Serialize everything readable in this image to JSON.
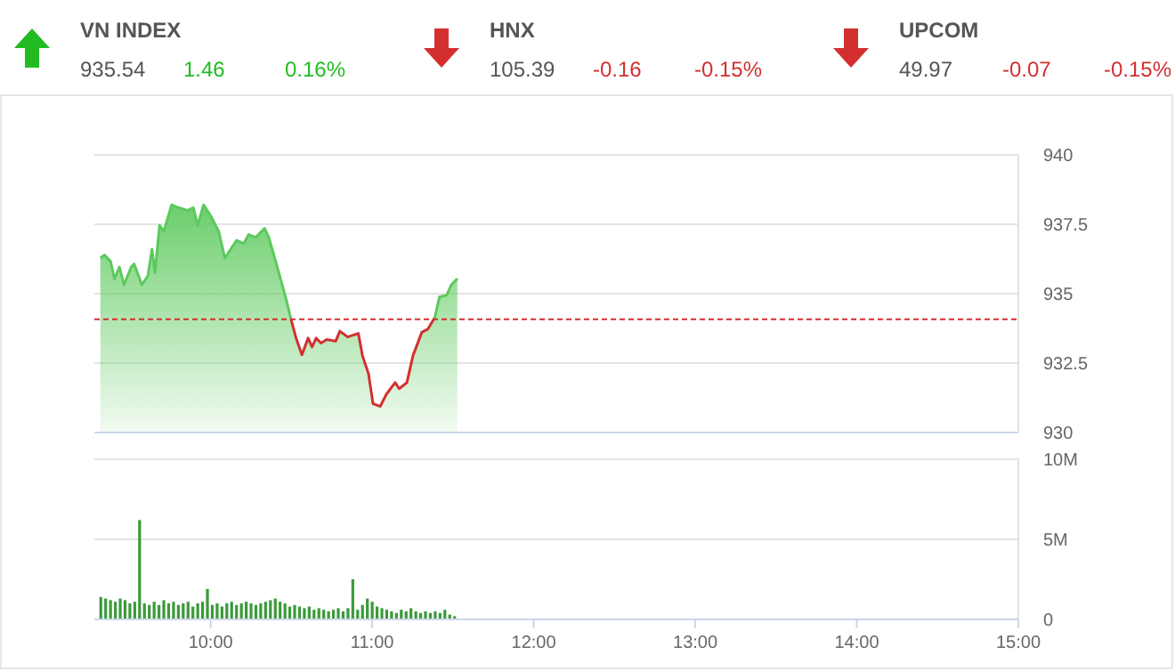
{
  "chart_data": [
    {
      "type": "other",
      "categories": [
        "VN INDEX",
        "HNX",
        "UPCOM"
      ],
      "values": [
        1.46,
        -0.16,
        -0.07
      ],
      "value_labels": [
        "1.46",
        "-0.16",
        "-0.07"
      ],
      "colors": [
        "#22bb22",
        "#d32f2f",
        "#d32f2f"
      ],
      "annotations": [
        "935.54",
        "0.16%",
        "105.39",
        "-0.15%",
        "49.97",
        "-0.15%"
      ]
    },
    {
      "type": "area",
      "xlim": [
        9.28,
        15
      ],
      "ylim": [
        930,
        940
      ],
      "yticks": [
        930,
        932.5,
        935,
        937.5,
        940
      ],
      "tick_labels": "y",
      "grid": "y",
      "ref_lines": [
        {
          "axis": "y",
          "value": 934.08,
          "color": "#d32f2f",
          "line_style": "dashed"
        }
      ],
      "series": [
        {
          "color": "#5cc95c",
          "x": [
            9.317,
            9.343,
            9.38,
            9.405,
            9.435,
            9.464,
            9.508,
            9.526,
            9.574,
            9.611,
            9.637,
            9.655,
            9.684,
            9.71,
            9.758,
            9.8,
            9.857,
            9.893,
            9.92,
            9.956,
            10.003,
            10.05,
            10.088,
            10.124,
            10.16,
            10.206,
            10.235,
            10.279,
            10.334,
            10.36,
            10.407,
            10.463,
            10.499,
            10.529,
            10.565,
            10.603,
            10.628,
            10.653,
            10.683,
            10.719,
            10.774,
            10.8,
            10.848,
            10.914,
            10.94,
            10.977,
            11.005,
            11.05,
            11.087,
            11.142,
            11.167,
            11.215,
            11.252,
            11.307,
            11.344,
            11.388,
            11.417,
            11.461,
            11.49,
            11.527
          ],
          "values": [
            936.28,
            936.39,
            936.17,
            935.53,
            935.96,
            935.32,
            935.96,
            936.07,
            935.32,
            935.64,
            936.6,
            935.75,
            937.46,
            937.24,
            938.2,
            938.1,
            938.0,
            938.1,
            937.46,
            938.2,
            937.78,
            937.24,
            936.28,
            936.6,
            936.92,
            936.81,
            937.13,
            937.03,
            937.35,
            937.03,
            936.07,
            934.89,
            934.04,
            933.4,
            932.8,
            933.4,
            933.08,
            933.4,
            933.22,
            933.35,
            933.29,
            933.65,
            933.44,
            933.57,
            932.76,
            932.12,
            931.04,
            930.94,
            931.37,
            931.8,
            931.58,
            931.8,
            932.76,
            933.61,
            933.72,
            934.15,
            934.89,
            934.94,
            935.32,
            935.54
          ]
        }
      ]
    },
    {
      "type": "bar",
      "xlim": [
        9.28,
        15
      ],
      "ylim": [
        0,
        10
      ],
      "yticks": [
        0,
        {
          "value": 5,
          "label": "5M"
        },
        {
          "value": 10,
          "label": "10M"
        }
      ],
      "xticks": [
        {
          "value": 10,
          "label": "10:00"
        },
        {
          "value": 11,
          "label": "11:00"
        },
        {
          "value": 12,
          "label": "12:00"
        },
        {
          "value": 13,
          "label": "13:00"
        },
        {
          "value": 14,
          "label": "14:00"
        },
        {
          "value": 15,
          "label": "15:00"
        }
      ],
      "grid": "y",
      "series": [
        {
          "color": "#3a9a3a",
          "x": [
            9.32,
            9.35,
            9.38,
            9.41,
            9.44,
            9.47,
            9.5,
            9.53,
            9.56,
            9.59,
            9.62,
            9.65,
            9.68,
            9.71,
            9.74,
            9.77,
            9.8,
            9.83,
            9.86,
            9.89,
            9.92,
            9.95,
            9.98,
            10.01,
            10.04,
            10.07,
            10.1,
            10.13,
            10.16,
            10.19,
            10.22,
            10.25,
            10.28,
            10.31,
            10.34,
            10.37,
            10.4,
            10.43,
            10.46,
            10.49,
            10.52,
            10.55,
            10.58,
            10.61,
            10.64,
            10.67,
            10.7,
            10.73,
            10.76,
            10.79,
            10.82,
            10.85,
            10.88,
            10.91,
            10.94,
            10.97,
            11.0,
            11.03,
            11.06,
            11.09,
            11.12,
            11.15,
            11.18,
            11.21,
            11.24,
            11.27,
            11.3,
            11.33,
            11.36,
            11.39,
            11.42,
            11.45,
            11.48,
            11.51
          ],
          "values": [
            1.4,
            1.3,
            1.2,
            1.1,
            1.3,
            1.2,
            1.0,
            1.1,
            6.2,
            1.0,
            0.9,
            1.1,
            0.9,
            1.2,
            1.0,
            1.1,
            0.9,
            1.0,
            1.1,
            0.8,
            1.0,
            1.1,
            1.9,
            0.9,
            1.0,
            0.8,
            1.0,
            1.1,
            0.9,
            1.0,
            1.1,
            1.0,
            0.9,
            1.0,
            1.1,
            1.2,
            1.3,
            1.1,
            1.0,
            0.8,
            0.9,
            0.8,
            0.7,
            0.8,
            0.6,
            0.7,
            0.6,
            0.5,
            0.6,
            0.7,
            0.5,
            0.7,
            2.5,
            0.6,
            0.9,
            1.3,
            1.1,
            0.8,
            0.7,
            0.6,
            0.5,
            0.4,
            0.6,
            0.5,
            0.7,
            0.5,
            0.4,
            0.5,
            0.4,
            0.5,
            0.4,
            0.6,
            0.3,
            0.2
          ]
        }
      ]
    }
  ]
}
